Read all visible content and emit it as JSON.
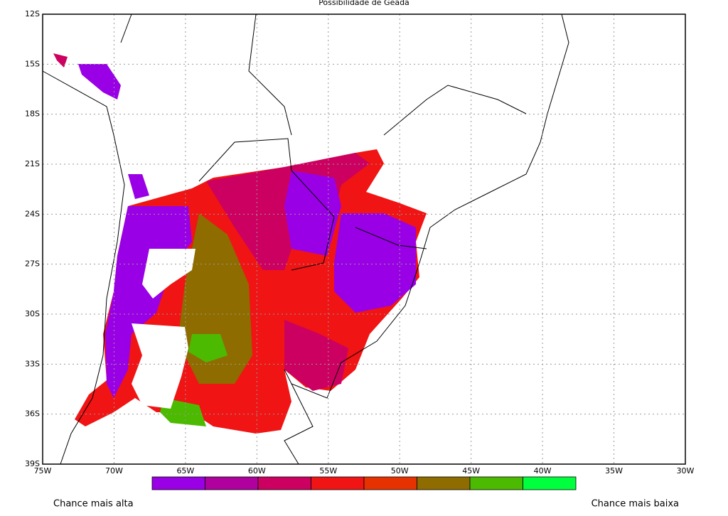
{
  "title": "Possibilidade de Geada",
  "lat_labels": [
    "12S",
    "15S",
    "18S",
    "21S",
    "24S",
    "27S",
    "30S",
    "33S",
    "36S",
    "39S"
  ],
  "lon_labels": [
    "75W",
    "70W",
    "65W",
    "60W",
    "55W",
    "50W",
    "45W",
    "40W",
    "35W",
    "30W"
  ],
  "colorbar": {
    "colors": [
      "#9a00e6",
      "#b0009e",
      "#cc0060",
      "#f01414",
      "#e63200",
      "#8e6c00",
      "#4cba00",
      "#00ff3c"
    ],
    "left_label": "Chance mais alta",
    "right_label": "Chance mais baixa"
  }
}
